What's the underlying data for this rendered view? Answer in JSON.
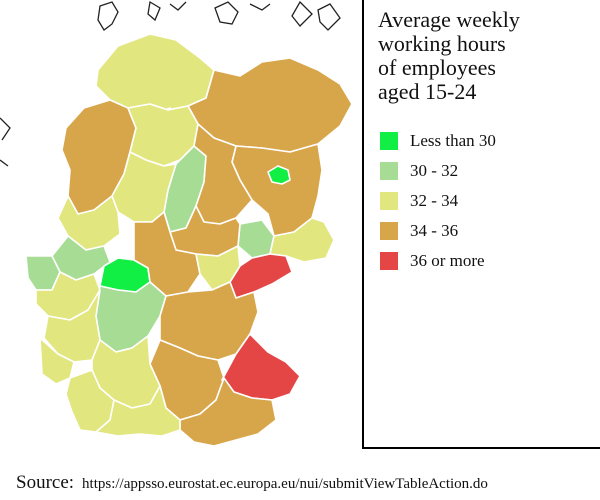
{
  "legend": {
    "title_lines": [
      "Average weekly",
      "working hours",
      "of employees",
      "aged 15-24"
    ],
    "items": [
      {
        "label": "Less than 30",
        "color": "#11ee44"
      },
      {
        "label": "30 - 32",
        "color": "#a6dc94"
      },
      {
        "label": "32 - 34",
        "color": "#e2e67e"
      },
      {
        "label": "34 - 36",
        "color": "#d8a64a"
      },
      {
        "label": "36 or more",
        "color": "#e44646"
      }
    ]
  },
  "source": {
    "label": "Source:",
    "url": "https://appsso.eurostat.ec.europa.eu/nui/submitViewTableAction.do"
  },
  "map": {
    "regions": [
      {
        "id": "sh-north",
        "cls": 2
      },
      {
        "id": "sh-center",
        "cls": 1
      },
      {
        "id": "nds-west",
        "cls": 3
      },
      {
        "id": "nds-center",
        "cls": 2
      },
      {
        "id": "nds-east",
        "cls": 1
      },
      {
        "id": "nds-south",
        "cls": 2
      },
      {
        "id": "mv",
        "cls": 3
      },
      {
        "id": "bb",
        "cls": 3
      },
      {
        "id": "berlin",
        "cls": 0
      },
      {
        "id": "nrw-north",
        "cls": 2
      },
      {
        "id": "nrw-center",
        "cls": 1
      },
      {
        "id": "nrw-west",
        "cls": 1
      },
      {
        "id": "nrw-south",
        "cls": 2
      },
      {
        "id": "hessen-north",
        "cls": 0
      },
      {
        "id": "hessen-south",
        "cls": 1
      },
      {
        "id": "rp",
        "cls": 2
      },
      {
        "id": "saar",
        "cls": 2
      },
      {
        "id": "st-north",
        "cls": 3
      },
      {
        "id": "st-south",
        "cls": 3
      },
      {
        "id": "leipzig",
        "cls": 1
      },
      {
        "id": "sn-east",
        "cls": 2
      },
      {
        "id": "sn-west",
        "cls": 4
      },
      {
        "id": "th-west",
        "cls": 3
      },
      {
        "id": "th-east",
        "cls": 2
      },
      {
        "id": "by-north",
        "cls": 3
      },
      {
        "id": "by-center",
        "cls": 3
      },
      {
        "id": "by-east",
        "cls": 4
      },
      {
        "id": "by-south",
        "cls": 3
      },
      {
        "id": "bw-north",
        "cls": 2
      },
      {
        "id": "bw-south",
        "cls": 2
      },
      {
        "id": "bw-sw",
        "cls": 2
      }
    ]
  }
}
